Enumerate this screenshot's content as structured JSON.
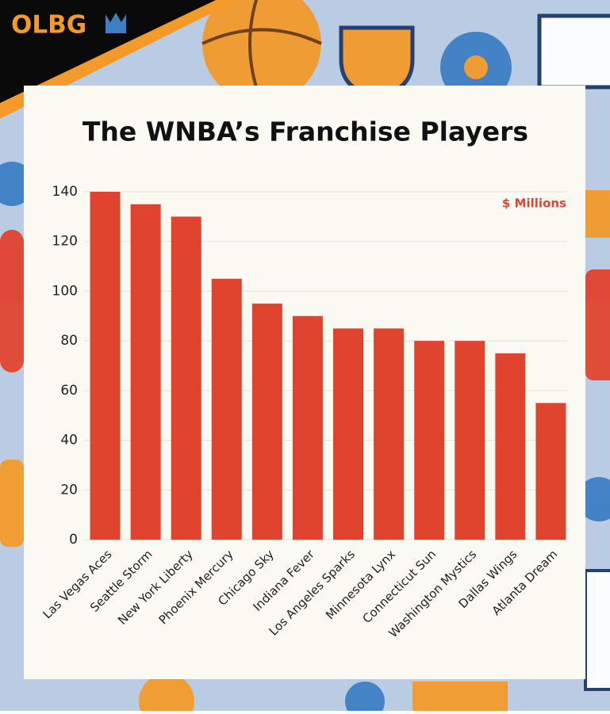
{
  "brand": "OLBG",
  "chart_data": {
    "type": "bar",
    "title": "The WNBA’s Franchise Players",
    "annotation": "$ Millions",
    "categories": [
      "Las Vegas Aces",
      "Seattle Storm",
      "New York Liberty",
      "Phoenix Mercury",
      "Chicago Sky",
      "Indiana Fever",
      "Los Angeles Sparks",
      "Minnesota Lynx",
      "Connecticut Sun",
      "Washington Mystics",
      "Dallas Wings",
      "Atlanta Dream"
    ],
    "values": [
      140,
      135,
      130,
      105,
      95,
      90,
      85,
      85,
      80,
      80,
      75,
      55
    ],
    "color": "#e0442e",
    "ylim": [
      0,
      140
    ],
    "yticks": [
      0,
      20,
      40,
      60,
      80,
      100,
      120,
      140
    ],
    "grid": true
  }
}
